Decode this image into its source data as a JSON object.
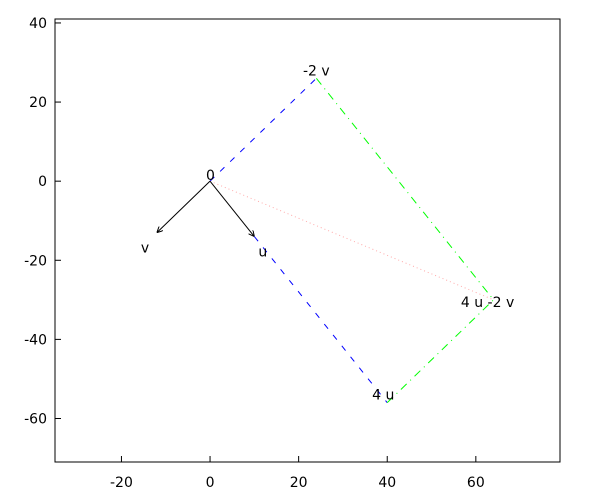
{
  "chart_data": {
    "type": "line",
    "title": "",
    "xlabel": "",
    "ylabel": "",
    "xlim": [
      -35,
      79
    ],
    "ylim": [
      -71,
      41
    ],
    "grid": false,
    "x_ticks": [
      -20,
      0,
      20,
      40,
      60
    ],
    "y_ticks": [
      -60,
      -40,
      -20,
      0,
      20,
      40
    ],
    "x_tick_labels": [
      "-20",
      "0",
      "20",
      "40",
      "60"
    ],
    "y_tick_labels": [
      "-60",
      "-40",
      "-20",
      "0",
      "20",
      "40"
    ],
    "vectors": [
      {
        "from": [
          0,
          0
        ],
        "to": [
          10,
          -14
        ],
        "label": "u",
        "color": "#000000",
        "style": "arrow"
      },
      {
        "from": [
          0,
          0
        ],
        "to": [
          -12,
          -13
        ],
        "label": "v",
        "color": "#000000",
        "style": "arrow"
      }
    ],
    "segments": [
      {
        "from": [
          0,
          0
        ],
        "to": [
          24,
          26
        ],
        "color": "#0000ff",
        "style": "dashed"
      },
      {
        "from": [
          10,
          -14
        ],
        "to": [
          40,
          -56
        ],
        "color": "#0000ff",
        "style": "dashed"
      },
      {
        "from": [
          24,
          26
        ],
        "to": [
          64,
          -30
        ],
        "color": "#00ff00",
        "style": "dash-dot"
      },
      {
        "from": [
          40,
          -56
        ],
        "to": [
          64,
          -30
        ],
        "color": "#00ff00",
        "style": "dash-dot"
      },
      {
        "from": [
          0,
          0
        ],
        "to": [
          64,
          -30
        ],
        "color": "#ffaaaa",
        "style": "dotted"
      }
    ],
    "point_labels": [
      {
        "at": [
          0,
          0
        ],
        "text": "0"
      },
      {
        "at": [
          24,
          26
        ],
        "text": "-2 v"
      },
      {
        "at": [
          40,
          -56
        ],
        "text": "4 u"
      },
      {
        "at": [
          64,
          -30
        ],
        "text": "4 u -2 v"
      }
    ]
  }
}
